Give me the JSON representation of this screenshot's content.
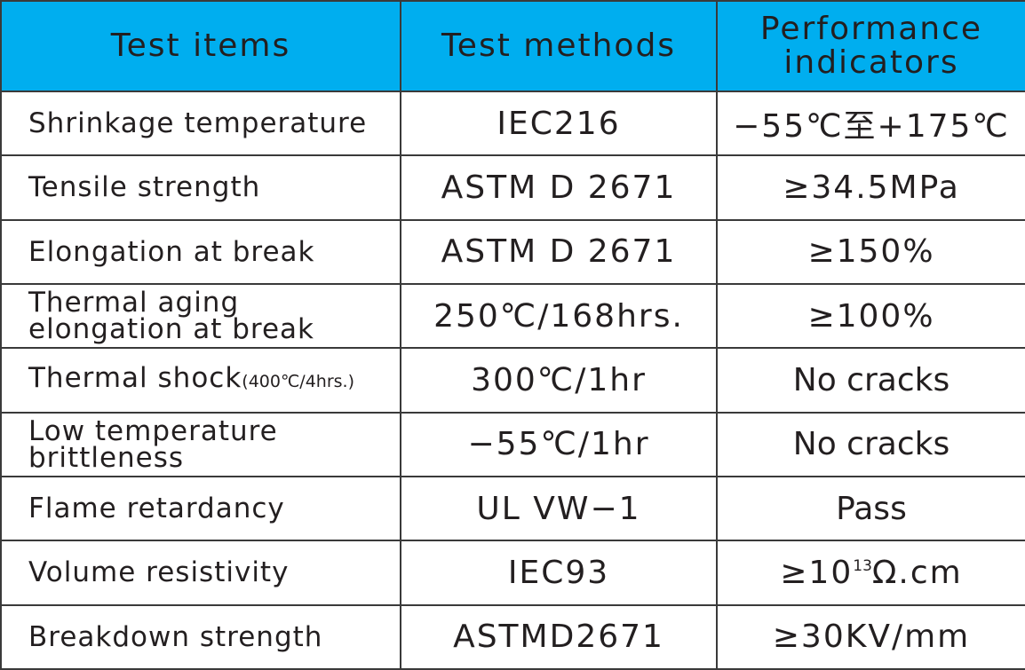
{
  "table": {
    "header": [
      "Test items",
      "Test methods",
      "Performance indicators"
    ],
    "rows": [
      [
        "Shrinkage temperature",
        "IEC216",
        "−55℃至+175℃"
      ],
      [
        "Tensile strength",
        "ASTM D 2671",
        "≥34.5MPa"
      ],
      [
        "Elongation at break",
        "ASTM D 2671",
        "≥150%"
      ],
      [
        "Thermal aging elongation at break",
        "250℃/168hrs.",
        "≥100%"
      ],
      [
        {
          "main": "Thermal shock",
          "small": "(400℃/4hrs.)"
        },
        "300℃/1hr",
        "No cracks"
      ],
      [
        "Low temperature brittleness",
        "−55℃/1hr",
        "No cracks"
      ],
      [
        "Flame retardancy",
        "UL VW−1",
        "Pass"
      ],
      [
        "Volume resistivity",
        "IEC93",
        {
          "prefix": "≥10",
          "sup": "13",
          "suffix": "Ω.cm"
        }
      ],
      [
        "Breakdown strength",
        "ASTMD2671",
        "≥30KV/mm"
      ]
    ]
  }
}
